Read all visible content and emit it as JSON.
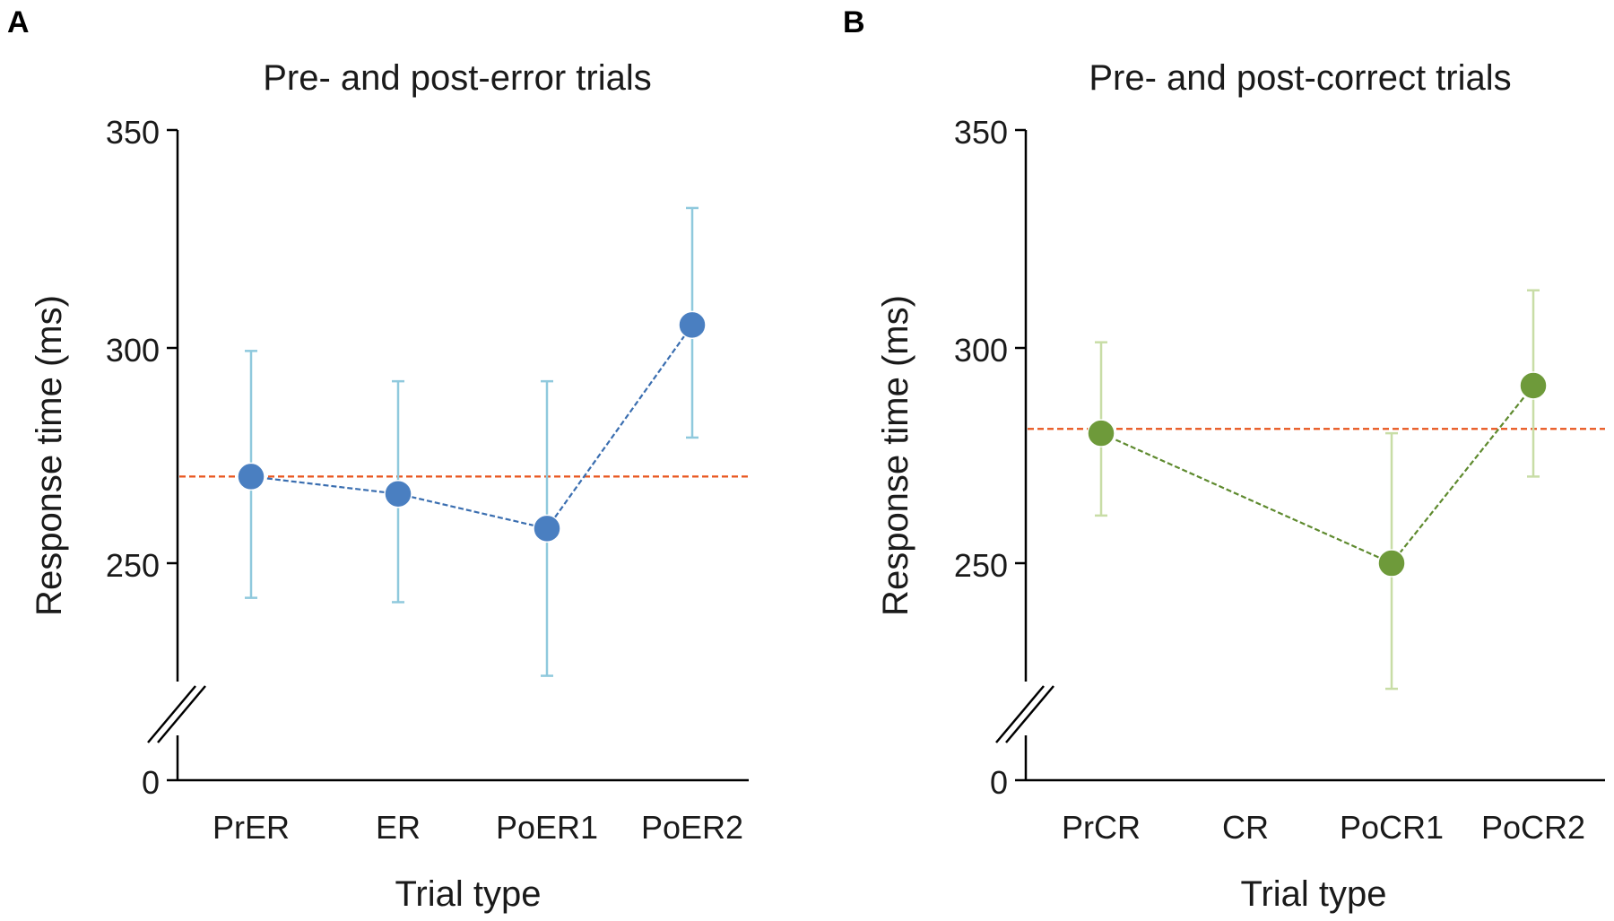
{
  "chart_data": [
    {
      "panel": "A",
      "type": "line",
      "title": "Pre- and post-error trials",
      "xlabel": "Trial type",
      "ylabel": "Response time (ms)",
      "categories": [
        "PrER",
        "ER",
        "PoER1",
        "PoER2"
      ],
      "values": [
        270,
        266,
        258,
        305
      ],
      "error_low": [
        242,
        241,
        224,
        279
      ],
      "error_high": [
        299,
        292,
        292,
        332
      ],
      "reference_line": 270,
      "yticks": [
        "350",
        "300",
        "250",
        "0"
      ],
      "ylim": [
        225,
        350
      ],
      "axis_break": true,
      "colors": {
        "marker": "#4a7fc1",
        "line": "#3a6eb0",
        "errorbar": "#8fc9dd",
        "reference": "#e8541c"
      }
    },
    {
      "panel": "B",
      "type": "line",
      "title": "Pre- and post-correct trials",
      "xlabel": "Trial type",
      "ylabel": "Response time (ms)",
      "categories": [
        "PrCR",
        "CR",
        "PoCR1",
        "PoCR2"
      ],
      "values": [
        280,
        null,
        250,
        291
      ],
      "error_low": [
        261,
        null,
        221,
        270
      ],
      "error_high": [
        301,
        null,
        280,
        313
      ],
      "reference_line": 281,
      "yticks": [
        "350",
        "300",
        "250",
        "0"
      ],
      "ylim": [
        225,
        350
      ],
      "axis_break": true,
      "colors": {
        "marker": "#6e9a3a",
        "line": "#5e8a2e",
        "errorbar": "#c8dda6",
        "reference": "#e8541c"
      }
    }
  ]
}
